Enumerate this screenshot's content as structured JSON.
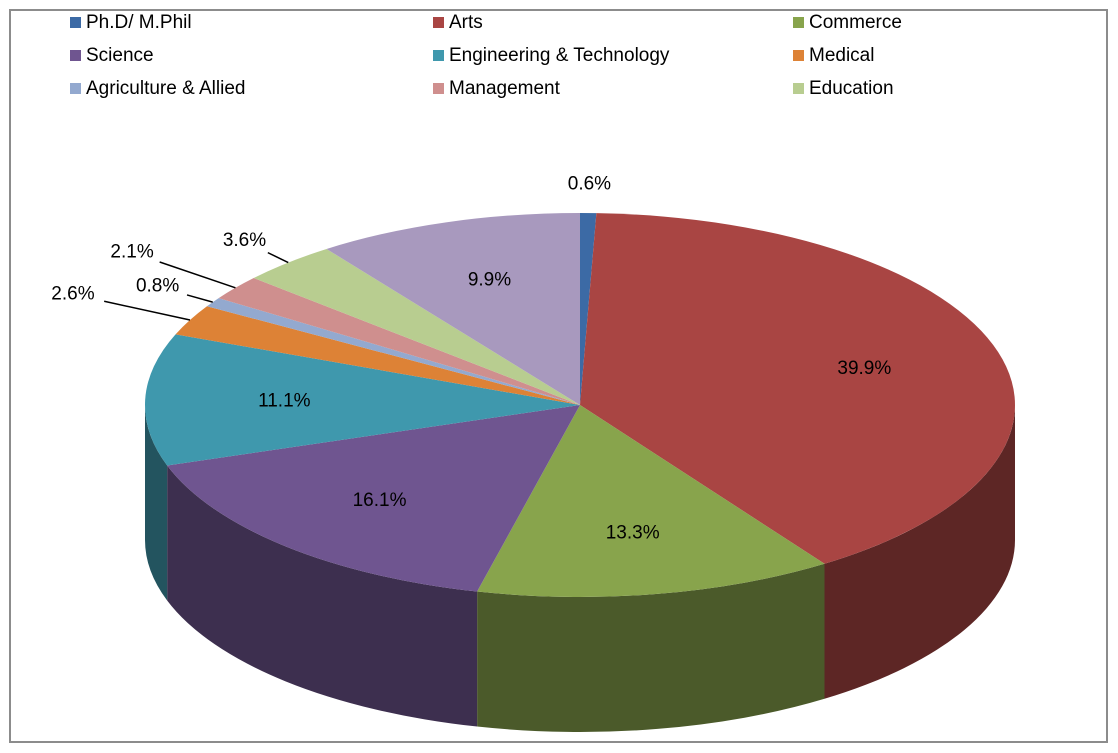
{
  "chart_data": {
    "type": "pie",
    "categories": [
      "Ph.D/ M.Phil",
      "Arts",
      "Commerce",
      "Science",
      "Engineering & Technology",
      "Medical",
      "Agriculture & Allied",
      "Management",
      "Education",
      null
    ],
    "values": [
      0.6,
      39.9,
      13.3,
      16.1,
      11.1,
      2.6,
      0.8,
      2.1,
      3.6,
      9.9
    ],
    "value_labels": [
      "0.6%",
      "39.9%",
      "13.3%",
      "16.1%",
      "11.1%",
      "2.6%",
      "0.8%",
      "2.1%",
      "3.6%",
      "9.9%"
    ],
    "colors": [
      "#3c6aa5",
      "#a94543",
      "#88a44c",
      "#6f5590",
      "#3f98ad",
      "#dd8236",
      "#93a9cf",
      "#cf8f8e",
      "#b8cd90",
      "#a899be"
    ],
    "legend": "top"
  }
}
